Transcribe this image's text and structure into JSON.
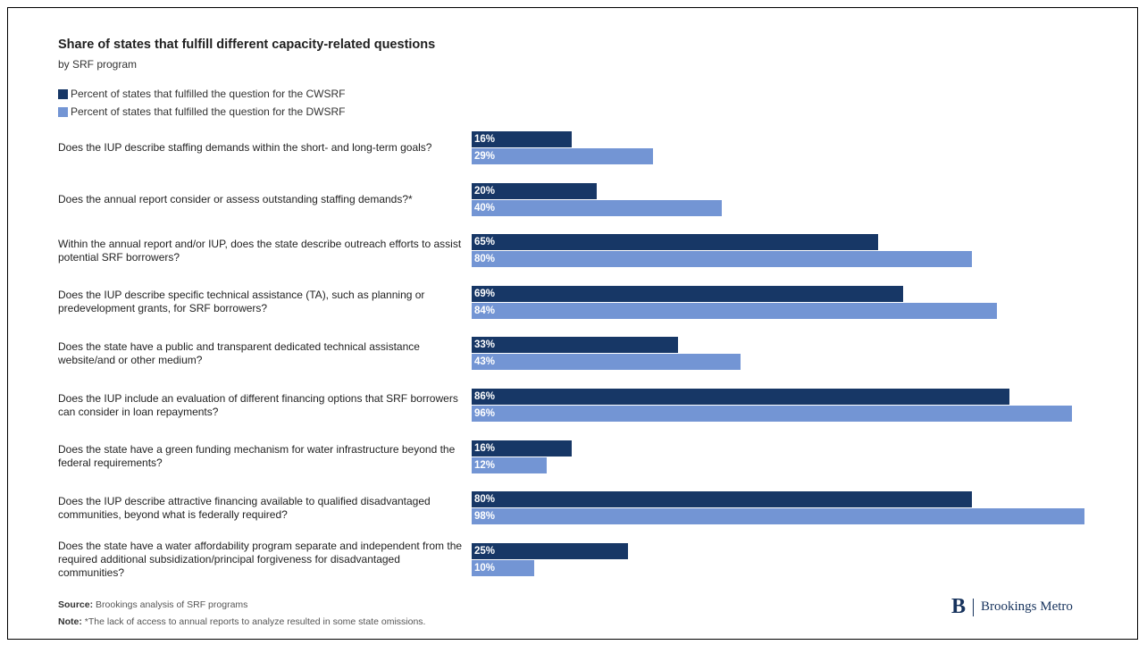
{
  "colors": {
    "cwsrf": "#173766",
    "dwsrf": "#7395d4"
  },
  "chart_data": {
    "type": "bar",
    "orientation": "horizontal",
    "title": "Share of states that fulfill different capacity-related questions",
    "subtitle": "by SRF program",
    "xlim": [
      0,
      100
    ],
    "categories": [
      "Does the IUP describe staffing demands within the short- and long-term goals?",
      "Does the annual report consider or assess outstanding staffing demands?*",
      "Within the annual report and/or IUP, does the state describe outreach efforts to assist potential SRF borrowers?",
      "Does the IUP describe specific technical assistance (TA), such as planning or predevelopment grants, for SRF borrowers?",
      "Does the state have a public and transparent dedicated technical assistance website/and or other medium?",
      "Does the IUP include an evaluation of different financing options that SRF borrowers can consider in loan repayments?",
      "Does the state have a green funding mechanism for water infrastructure beyond the federal requirements?",
      "Does the IUP describe attractive financing available to qualified disadvantaged communities, beyond what is federally required?",
      "Does the state have a water affordability program separate and independent from the required additional subsidization/principal forgiveness for disadvantaged communities?"
    ],
    "series": [
      {
        "name": "Percent of states that fulfilled the question for the CWSRF",
        "values": [
          16,
          20,
          65,
          69,
          33,
          86,
          16,
          80,
          25
        ],
        "labels": [
          "16%",
          "20%",
          "65%",
          "69%",
          "33%",
          "86%",
          "16%",
          "80%",
          "25%"
        ]
      },
      {
        "name": "Percent of states that fulfilled the question for the DWSRF",
        "values": [
          29,
          40,
          80,
          84,
          43,
          96,
          12,
          98,
          10
        ],
        "labels": [
          "29%",
          "40%",
          "80%",
          "84%",
          "43%",
          "96%",
          "12%",
          "98%",
          "10%"
        ]
      }
    ],
    "legend_position": "top-left",
    "grid": false
  },
  "footer": {
    "source_key": "Source:",
    "source_text": " Brookings analysis of SRF programs",
    "note_key": "Note:",
    "note_text": " *The lack of access to annual reports to analyze resulted in some state omissions."
  },
  "logo": {
    "mark": "B",
    "text": "Brookings Metro"
  }
}
